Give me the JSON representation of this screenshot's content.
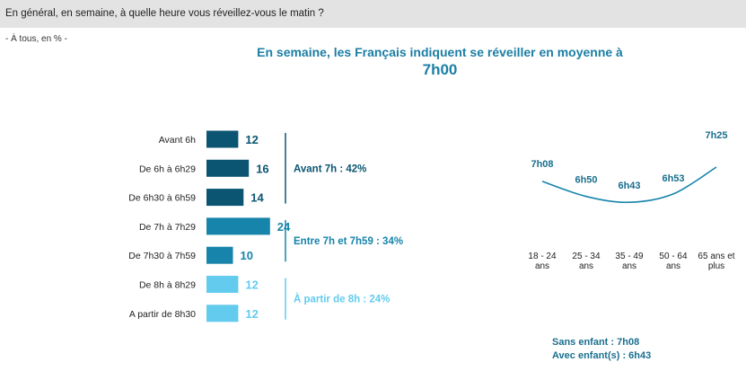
{
  "question": "En général, en semaine, à quelle heure vous réveillez-vous le matin ?",
  "base": "- À tous, en % -",
  "headline": {
    "line1": "En semaine, les Français indiquent se réveiller en moyenne à",
    "line2": "7h00"
  },
  "colors": {
    "dark": "#0b5573",
    "mid": "#1684ab",
    "light": "#63cbee",
    "curve": "#1684ab"
  },
  "chart_data": [
    {
      "type": "bar",
      "orientation": "horizontal",
      "categories": [
        "Avant 6h",
        "De 6h à 6h29",
        "De 6h30 à 6h59",
        "De 7h à 7h29",
        "De 7h30 à 7h59",
        "De 8h à 8h29",
        "A partir de 8h30"
      ],
      "values": [
        12,
        16,
        14,
        24,
        10,
        12,
        12
      ],
      "groups": [
        {
          "label": "Avant 7h : 42%",
          "members": [
            0,
            1,
            2
          ],
          "tone": "dark"
        },
        {
          "label": "Entre 7h et 7h59 : 34%",
          "members": [
            3,
            4
          ],
          "tone": "mid"
        },
        {
          "label": "À partir de 8h : 24%",
          "members": [
            5,
            6
          ],
          "tone": "light"
        }
      ]
    },
    {
      "type": "line",
      "categories": [
        "18 - 24 ans",
        "25 - 34 ans",
        "35 - 49 ans",
        "50 - 64 ans",
        "65 ans et plus"
      ],
      "values": [
        428,
        410,
        403,
        413,
        445
      ],
      "data_labels": [
        "7h08",
        "6h50",
        "6h43",
        "6h53",
        "7h25"
      ]
    }
  ],
  "notes": [
    "Sans enfant : 7h08",
    "Avec enfant(s) : 6h43"
  ]
}
